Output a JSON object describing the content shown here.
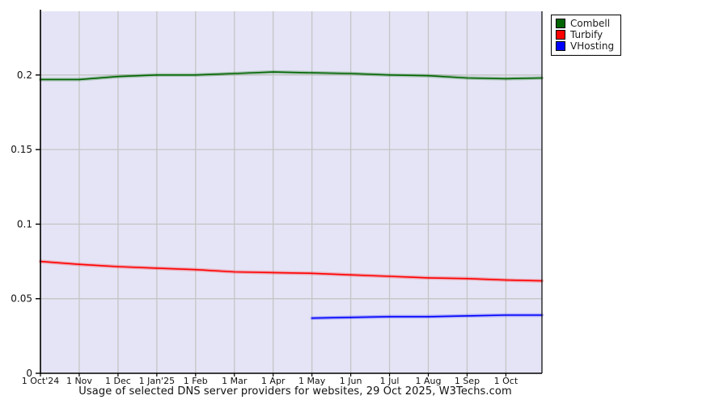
{
  "title": "Usage of selected DNS server providers for websites, 29 Oct 2025, W3Techs.com",
  "legend": {
    "items": [
      {
        "label": "Combell",
        "color": "#006400"
      },
      {
        "label": "Turbify",
        "color": "#ff0000"
      },
      {
        "label": "VHosting",
        "color": "#0000ff"
      }
    ]
  },
  "chart_data": {
    "type": "line",
    "title": "Usage of selected DNS server providers for websites, 29 Oct 2025, W3Techs.com",
    "xlabel": "",
    "ylabel": "",
    "x_tick_labels": [
      "1 Oct'24",
      "1 Nov",
      "1 Dec",
      "1 Jan'25",
      "1 Feb",
      "1 Mar",
      "1 Apr",
      "1 May",
      "1 Jun",
      "1 Jul",
      "1 Aug",
      "1 Sep",
      "1 Oct"
    ],
    "x_ticks": [
      0,
      1,
      2,
      3,
      4,
      5,
      6,
      7,
      8,
      9,
      10,
      11,
      12
    ],
    "y_ticks": [
      0,
      0.05,
      0.1,
      0.15,
      0.2
    ],
    "y_tick_labels": [
      "0",
      "0.05",
      "0.1",
      "0.15",
      "0.2"
    ],
    "xlim": [
      0,
      12.93
    ],
    "ylim": [
      0,
      0.2427
    ],
    "grid": true,
    "legend_position": "top-right-outside",
    "plot_bg_color": "#e4e4f6",
    "grid_color": "#c5c5c5",
    "axis_color": "#000000",
    "series": [
      {
        "name": "Combell",
        "color": "#006400",
        "x": [
          0,
          1,
          2,
          3,
          4,
          5,
          6,
          7,
          8,
          9,
          10,
          11,
          12,
          12.93
        ],
        "values": [
          0.197,
          0.197,
          0.199,
          0.2,
          0.2,
          0.201,
          0.202,
          0.2015,
          0.201,
          0.2,
          0.1995,
          0.198,
          0.1975,
          0.198
        ]
      },
      {
        "name": "Turbify",
        "color": "#ff0000",
        "x": [
          0,
          1,
          2,
          3,
          4,
          5,
          6,
          7,
          8,
          9,
          10,
          11,
          12,
          12.93
        ],
        "values": [
          0.075,
          0.073,
          0.0715,
          0.0705,
          0.0695,
          0.068,
          0.0675,
          0.067,
          0.066,
          0.065,
          0.064,
          0.0635,
          0.0625,
          0.062
        ]
      },
      {
        "name": "VHosting",
        "color": "#0000ff",
        "x": [
          7,
          8,
          9,
          10,
          11,
          12,
          12.93
        ],
        "values": [
          0.037,
          0.0375,
          0.038,
          0.038,
          0.0385,
          0.039,
          0.039
        ]
      }
    ]
  }
}
